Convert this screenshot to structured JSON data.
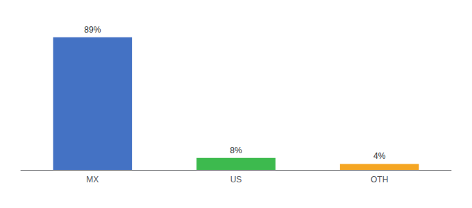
{
  "chart_data": {
    "type": "bar",
    "categories": [
      "MX",
      "US",
      "OTH"
    ],
    "values": [
      89,
      8,
      4
    ],
    "value_labels": [
      "89%",
      "8%",
      "4%"
    ],
    "colors": [
      "#4472c4",
      "#3dba4e",
      "#f5a623"
    ],
    "ylim": [
      0,
      100
    ],
    "data_labels": true,
    "tick_labels": "x",
    "grid": false
  }
}
